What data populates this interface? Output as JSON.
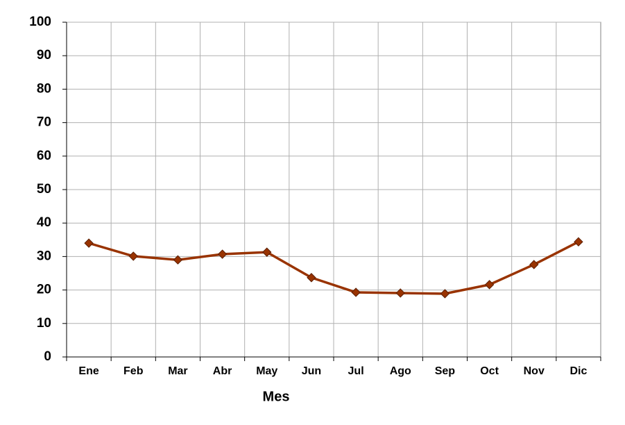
{
  "chart_data": {
    "type": "line",
    "x_label": "Mes",
    "categories": [
      "Ene",
      "Feb",
      "Mar",
      "Abr",
      "May",
      "Jun",
      "Jul",
      "Ago",
      "Sep",
      "Oct",
      "Nov",
      "Dic"
    ],
    "series": [
      {
        "color": "#993300",
        "values": [
          34.0,
          30.1,
          29.0,
          30.7,
          31.3,
          23.7,
          19.3,
          19.1,
          18.9,
          21.6,
          27.6,
          34.4
        ]
      }
    ],
    "ylim": [
      0,
      100
    ],
    "yticks": [
      0,
      10,
      20,
      30,
      40,
      50,
      60,
      70,
      80,
      90,
      100
    ],
    "grid": true
  }
}
